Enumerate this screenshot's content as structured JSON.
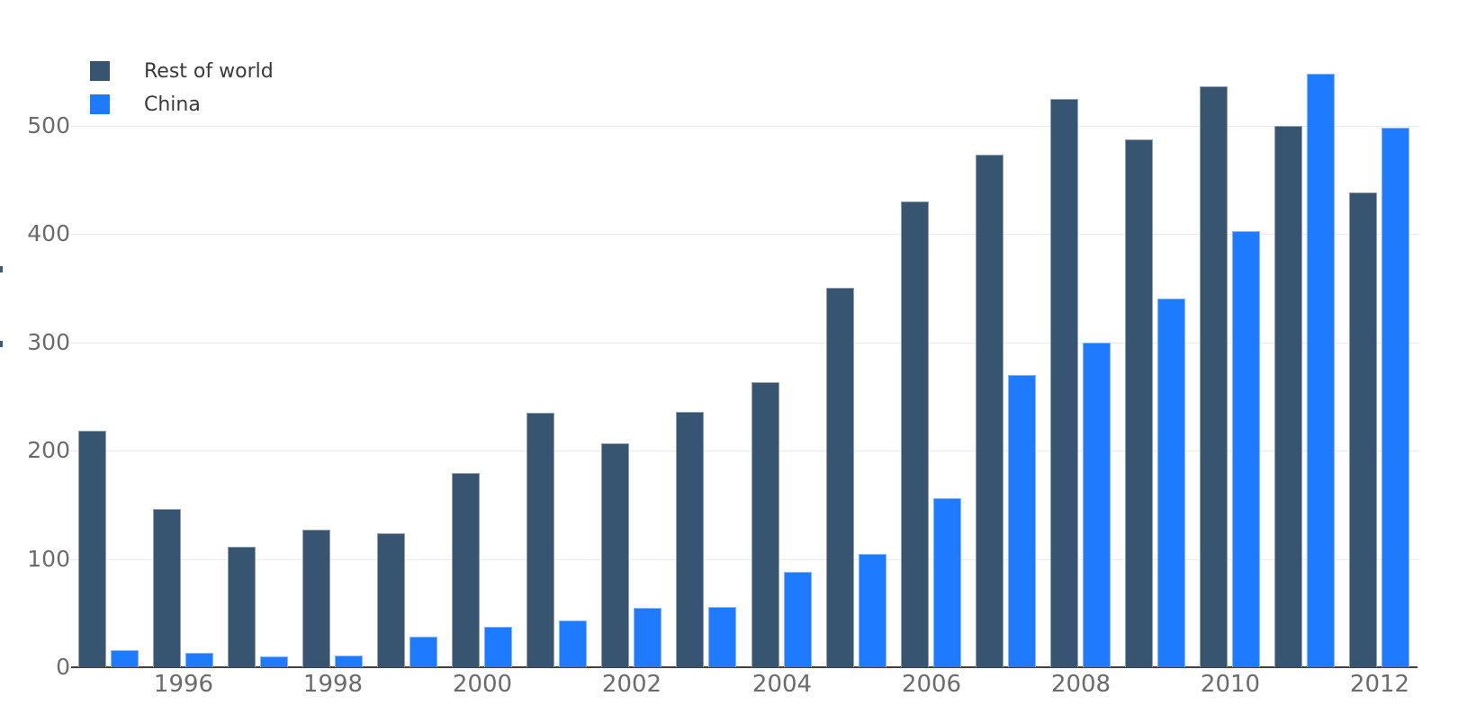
{
  "chart_data": {
    "type": "bar",
    "title": "",
    "categories": [
      1995,
      1996,
      1997,
      1998,
      1999,
      2000,
      2001,
      2002,
      2003,
      2004,
      2005,
      2006,
      2007,
      2008,
      2009,
      2010,
      2011,
      2012
    ],
    "series": [
      {
        "name": "Rest of world",
        "color": "#375571",
        "values": [
          218,
          146,
          111,
          127,
          124,
          179,
          235,
          207,
          236,
          263,
          350,
          430,
          473,
          525,
          487,
          536,
          500,
          438
        ]
      },
      {
        "name": "China",
        "color": "#1E7BFF",
        "values": [
          16,
          13,
          10,
          11,
          28,
          37,
          43,
          55,
          56,
          88,
          105,
          156,
          270,
          300,
          340,
          403,
          548,
          498
        ]
      }
    ],
    "xlabel": "",
    "ylabel": "",
    "ylim": [
      0,
      560
    ],
    "yticks": [
      0,
      100,
      200,
      300,
      400,
      500
    ],
    "x_tick_labels": [
      "1996",
      "1998",
      "2000",
      "2002",
      "2004",
      "2006",
      "2008",
      "2010",
      "2012"
    ],
    "grid": "horizontal",
    "legend_position": "top-left",
    "colors": {
      "gridline": "#ececec",
      "zero_line": "#404040",
      "tick_text": "#6b6b6b",
      "legend_text": "#3a3a3a",
      "background": "#ffffff"
    }
  }
}
